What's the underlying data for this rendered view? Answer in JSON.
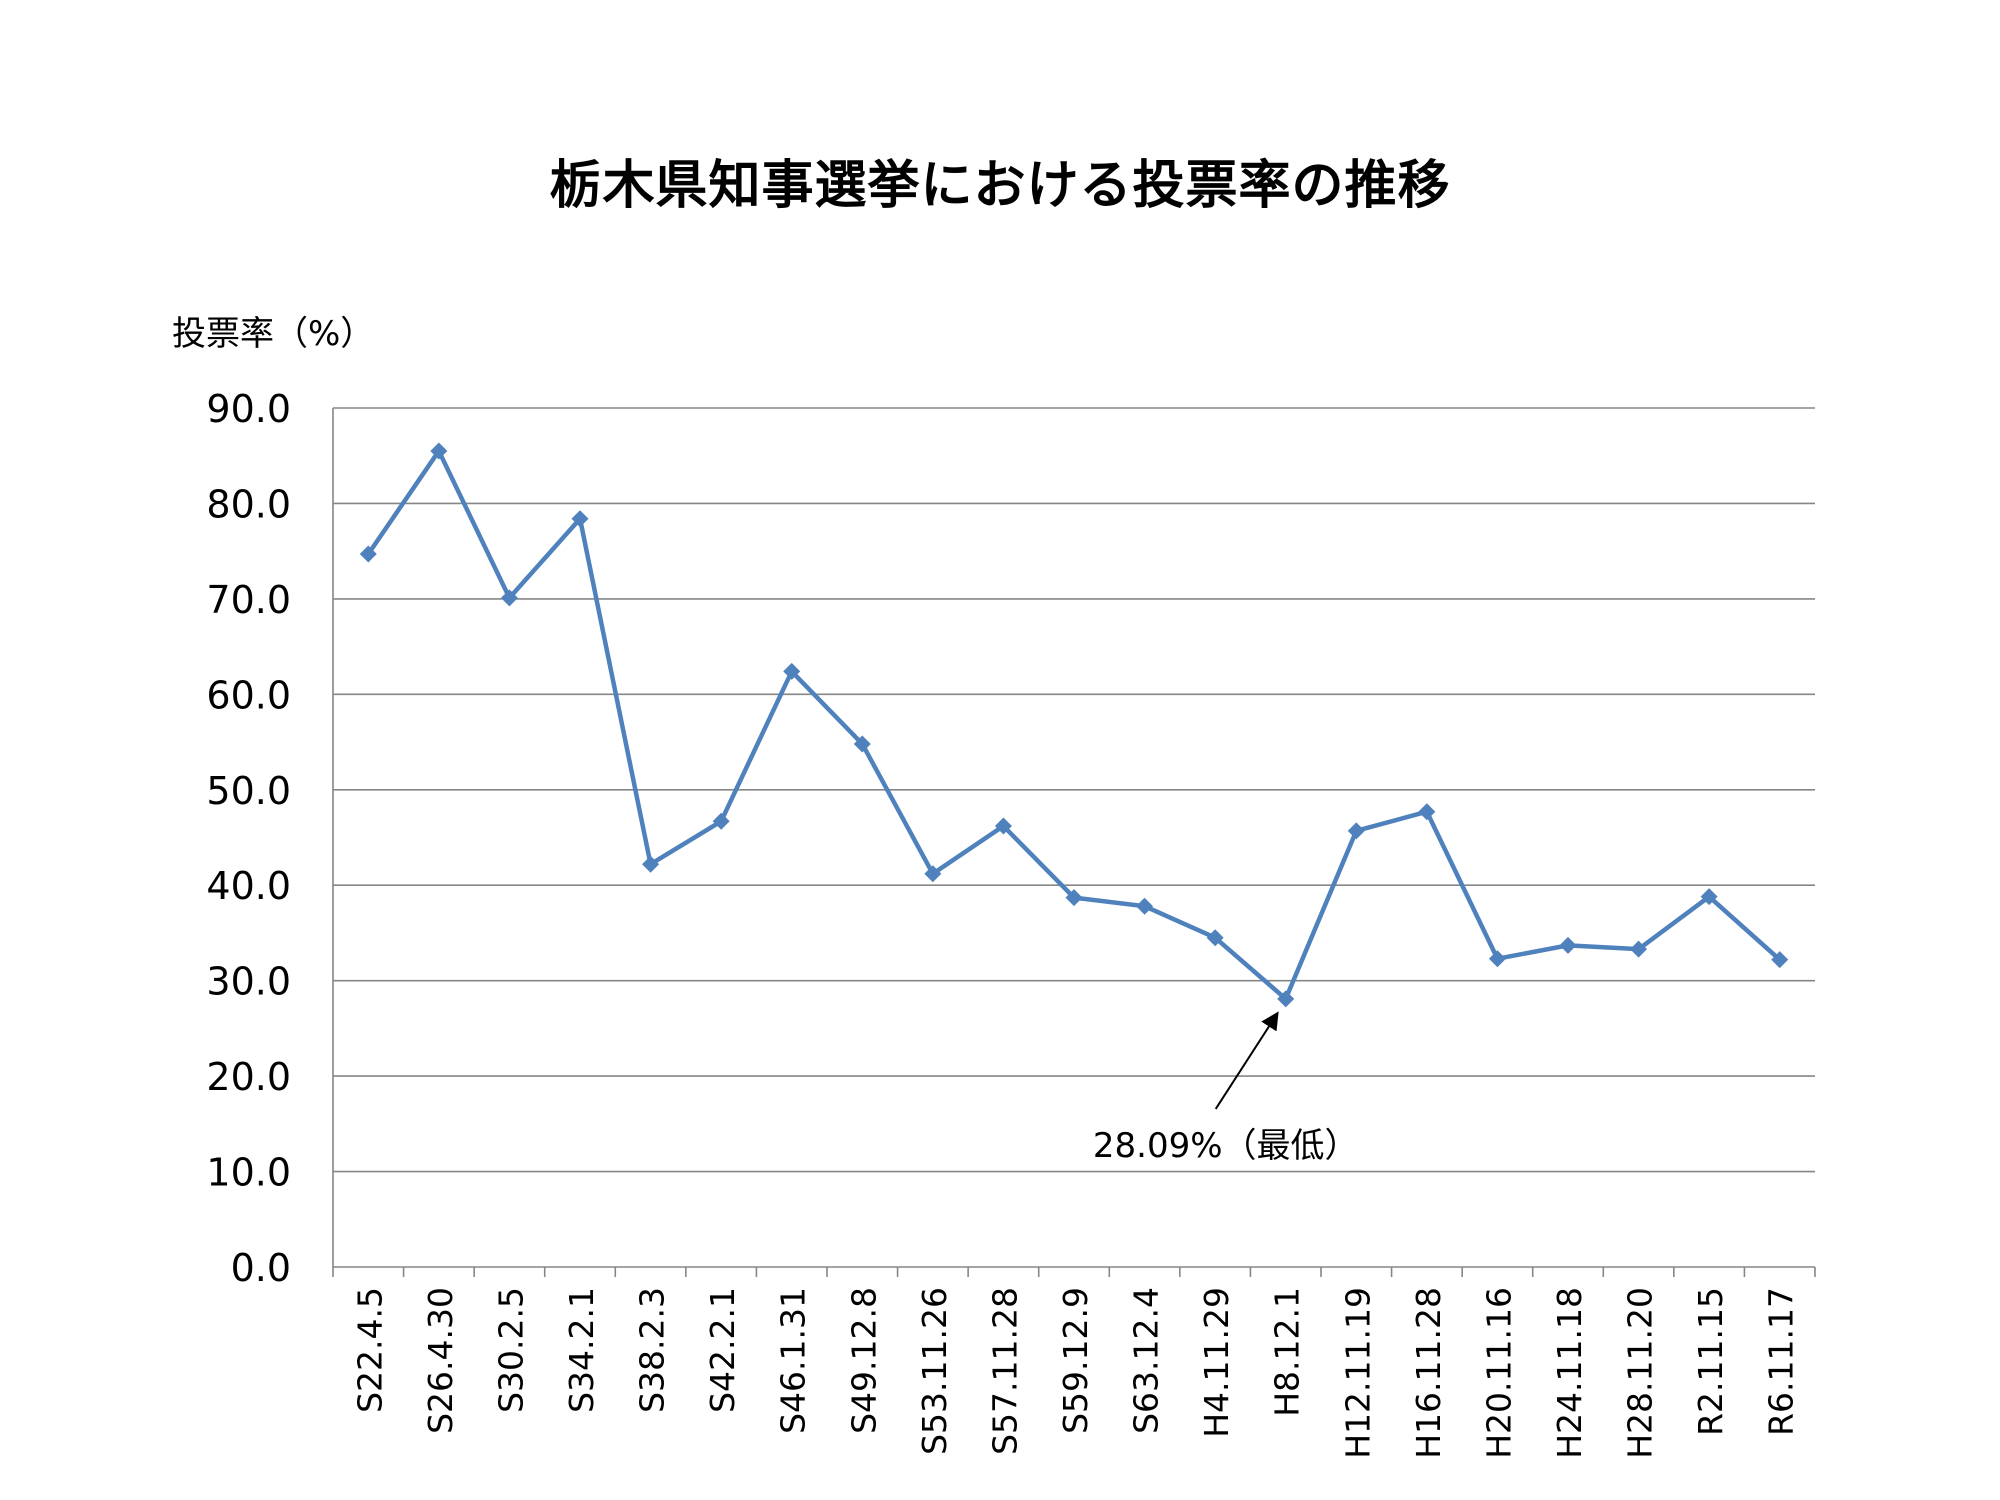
{
  "chart_data": {
    "type": "line",
    "title": "栃木県知事選挙における投票率の推移",
    "ylabel": "投票率（%）",
    "xlabel": "",
    "ylim": [
      0,
      90
    ],
    "y_ticks": [
      "0.0",
      "10.0",
      "20.0",
      "30.0",
      "40.0",
      "50.0",
      "60.0",
      "70.0",
      "80.0",
      "90.0"
    ],
    "grid": true,
    "categories": [
      "S22.4.5",
      "S26.4.30",
      "S30.2.5",
      "S34.2.1",
      "S38.2.3",
      "S42.2.1",
      "S46.1.31",
      "S49.12.8",
      "S53.11.26",
      "S57.11.28",
      "S59.12.9",
      "S63.12.4",
      "H4.11.29",
      "H8.12.1",
      "H12.11.19",
      "H16.11.28",
      "H20.11.16",
      "H24.11.18",
      "H28.11.20",
      "R2.11.15",
      "R6.11.17"
    ],
    "series": [
      {
        "values": [
          74.7,
          85.5,
          70.1,
          78.4,
          42.2,
          46.7,
          62.4,
          54.8,
          41.2,
          46.2,
          38.7,
          37.8,
          34.5,
          28.09,
          45.7,
          47.7,
          32.3,
          33.7,
          33.3,
          38.8,
          32.2
        ],
        "color": "#4F81BD"
      }
    ],
    "annotations": [
      {
        "text": "28.09%（最低）",
        "category": "H8.12.1",
        "value": 28.09
      }
    ]
  }
}
